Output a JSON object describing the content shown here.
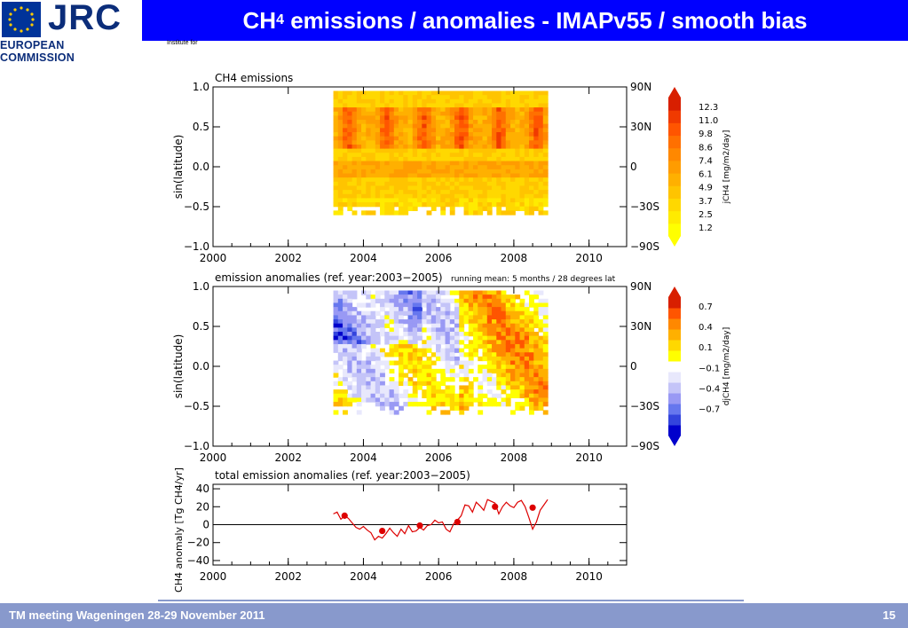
{
  "header": {
    "logo_text": "JRC",
    "org": "EUROPEAN COMMISSION",
    "title_main": "CH",
    "title_sub": "4",
    "title_rest": " emissions / anomalies - IMAPv55 / smooth bias",
    "institute": "Institute for"
  },
  "footer": {
    "left": "TM meeting Wageningen 28-29 November 2011",
    "page": "15"
  },
  "colors": {
    "title_bg": "#0000ff",
    "footer_bg": "#8899cc",
    "emis_palette": [
      "#ffff00",
      "#ffeb00",
      "#ffd800",
      "#ffc400",
      "#ffb000",
      "#ff9c00",
      "#ff8800",
      "#ff7000",
      "#ff5500",
      "#f03a00",
      "#d81f00"
    ],
    "anom_palette": [
      "#0000cc",
      "#3344dd",
      "#6677ee",
      "#9999f4",
      "#c4c4f8",
      "#e8e8fc",
      "#ffffff",
      "#ffff00",
      "#ffd800",
      "#ffb000",
      "#ff8800",
      "#ff5500",
      "#d81f00"
    ]
  },
  "chart_data": [
    {
      "type": "heatmap",
      "title": "CH4 emissions",
      "ylabel": "sin(latitude)",
      "xlim": [
        2000,
        2011
      ],
      "ylim": [
        -1.0,
        1.0
      ],
      "x_ticks": [
        "2000",
        "2002",
        "2004",
        "2006",
        "2008",
        "2010"
      ],
      "y_ticks": [
        "1.0",
        "0.5",
        "0.0",
        "−0.5",
        "−1.0"
      ],
      "right_ticks": [
        "90N",
        "30N",
        "0",
        "−30S",
        "−90S"
      ],
      "colorbar_label": "jCH4 [mg/m2/day]",
      "colorbar_values": [
        "12.3",
        "11.0",
        "9.8",
        "8.6",
        "7.4",
        "6.1",
        "4.9",
        "3.7",
        "2.5",
        "1.2"
      ],
      "data_x_range": [
        2003.2,
        2008.9
      ]
    },
    {
      "type": "heatmap",
      "title": "emission anomalies (ref. year:2003−2005)",
      "note": "running mean:  5 months / 28 degrees lat",
      "ylabel": "sin(latitude)",
      "xlim": [
        2000,
        2011
      ],
      "ylim": [
        -1.0,
        1.0
      ],
      "x_ticks": [
        "2000",
        "2002",
        "2004",
        "2006",
        "2008",
        "2010"
      ],
      "y_ticks": [
        "1.0",
        "0.5",
        "0.0",
        "−0.5",
        "−1.0"
      ],
      "right_ticks": [
        "90N",
        "30N",
        "0",
        "−30S",
        "−90S"
      ],
      "colorbar_label": "djCH4 [mg/m2/day]",
      "colorbar_values": [
        "0.7",
        "0.4",
        "0.1",
        "−0.1",
        "−0.4",
        "−0.7"
      ],
      "data_x_range": [
        2003.2,
        2008.9
      ]
    },
    {
      "type": "line",
      "title": "total emission anomalies (ref. year:2003−2005)",
      "ylabel": "CH4 anomaly [Tg CH4/yr]",
      "xlim": [
        2000,
        2011
      ],
      "ylim": [
        -45,
        45
      ],
      "x_ticks": [
        "2000",
        "2002",
        "2004",
        "2006",
        "2008",
        "2010"
      ],
      "y_ticks": [
        "40",
        "20",
        "0",
        "−20",
        "−40"
      ],
      "series": [
        {
          "x": [
            2003.2,
            2003.3,
            2003.4,
            2003.5,
            2003.6,
            2003.7,
            2003.8,
            2003.9,
            2004.0,
            2004.1,
            2004.2,
            2004.3,
            2004.4,
            2004.5,
            2004.6,
            2004.7,
            2004.8,
            2004.9,
            2005.0,
            2005.1,
            2005.2,
            2005.3,
            2005.4,
            2005.5,
            2005.6,
            2005.7,
            2005.8,
            2005.9,
            2006.0,
            2006.1,
            2006.2,
            2006.3,
            2006.4,
            2006.5,
            2006.6,
            2006.7,
            2006.8,
            2006.9,
            2007.0,
            2007.1,
            2007.2,
            2007.3,
            2007.4,
            2007.5,
            2007.6,
            2007.7,
            2007.8,
            2007.9,
            2008.0,
            2008.1,
            2008.2,
            2008.3,
            2008.4,
            2008.5,
            2008.6,
            2008.7,
            2008.8,
            2008.9
          ],
          "y": [
            12,
            14,
            6,
            10,
            7,
            2,
            -3,
            -5,
            -2,
            -6,
            -9,
            -17,
            -13,
            -15,
            -10,
            -4,
            -9,
            -13,
            -5,
            -10,
            -1,
            -8,
            -7,
            -3,
            -6,
            -1,
            0,
            5,
            2,
            3,
            -5,
            -8,
            1,
            5,
            10,
            22,
            21,
            14,
            25,
            21,
            16,
            28,
            26,
            24,
            12,
            20,
            25,
            21,
            19,
            25,
            27,
            20,
            8,
            -5,
            3,
            16,
            22,
            28
          ]
        }
      ],
      "annual_means": {
        "x": [
          2003.5,
          2004.5,
          2005.5,
          2006.5,
          2007.5,
          2008.5
        ],
        "y": [
          10,
          -7,
          -1,
          3,
          20,
          19
        ]
      }
    }
  ]
}
